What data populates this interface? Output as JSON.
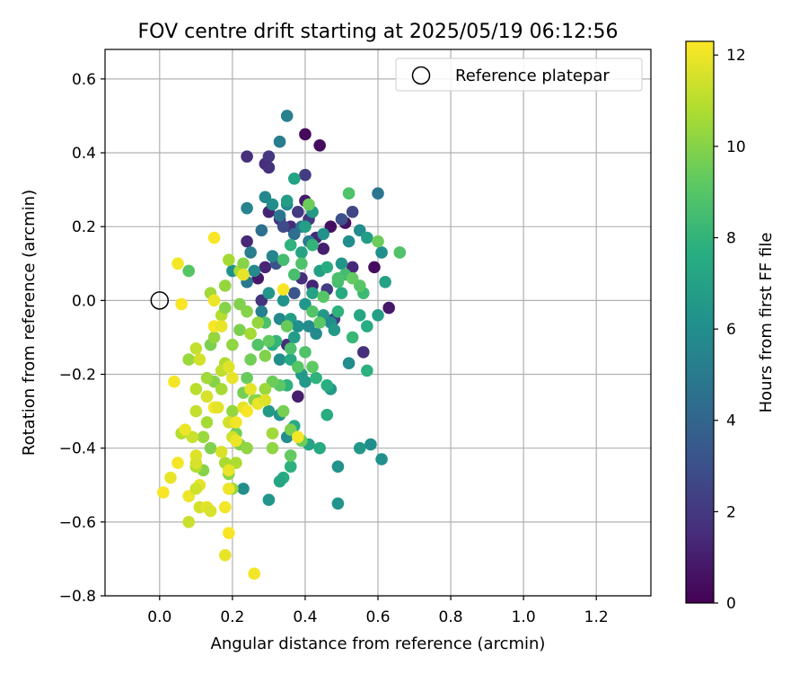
{
  "chart_data": {
    "type": "scatter",
    "title": "FOV centre drift starting at 2025/05/19 06:12:56",
    "xlabel": "Angular distance from reference (arcmin)",
    "ylabel": "Rotation from reference (arcmin)",
    "xlim": [
      -0.15,
      1.35
    ],
    "ylim": [
      -0.8,
      0.68
    ],
    "xticks": [
      0.0,
      0.2,
      0.4,
      0.6,
      0.8,
      1.0,
      1.2
    ],
    "xtick_labels": [
      "0.0",
      "0.2",
      "0.4",
      "0.6",
      "0.8",
      "1.0",
      "1.2"
    ],
    "yticks": [
      0.6,
      0.4,
      0.2,
      0.0,
      -0.2,
      -0.4,
      -0.6,
      -0.8
    ],
    "ytick_labels": [
      "0.6",
      "0.4",
      "0.2",
      "0.0",
      "−0.2",
      "−0.4",
      "−0.6",
      "−0.8"
    ],
    "grid": true,
    "legend": {
      "position": "top-right",
      "entries": [
        "Reference platepar"
      ]
    },
    "reference_point": {
      "name": "Reference platepar",
      "x": 0.0,
      "y": 0.0
    },
    "colorbar": {
      "label": "Hours from first FF file",
      "colormap": "viridis",
      "range": [
        0,
        12.3
      ],
      "ticks": [
        0,
        2,
        4,
        6,
        8,
        10,
        12
      ],
      "tick_labels": [
        "0",
        "2",
        "4",
        "6",
        "8",
        "10",
        "12"
      ]
    },
    "colors": [
      "#440154",
      "#472d7b",
      "#3b528b",
      "#2c728e",
      "#21918c",
      "#28ae80",
      "#5ec962",
      "#addc30",
      "#fde725"
    ],
    "points": [
      {
        "x": 0.4,
        "y": 0.45,
        "h": 0.3
      },
      {
        "x": 0.44,
        "y": 0.42,
        "h": 0.4
      },
      {
        "x": 0.47,
        "y": 0.2,
        "h": 0.5
      },
      {
        "x": 0.51,
        "y": 0.21,
        "h": 0.6
      },
      {
        "x": 0.59,
        "y": 0.09,
        "h": 0.4
      },
      {
        "x": 0.63,
        "y": -0.02,
        "h": 0.8
      },
      {
        "x": 0.4,
        "y": 0.27,
        "h": 0.9
      },
      {
        "x": 0.27,
        "y": 0.06,
        "h": 0.8
      },
      {
        "x": 0.45,
        "y": 0.14,
        "h": 1.0
      },
      {
        "x": 0.24,
        "y": 0.39,
        "h": 1.6
      },
      {
        "x": 0.29,
        "y": 0.37,
        "h": 1.5
      },
      {
        "x": 0.3,
        "y": 0.39,
        "h": 1.9
      },
      {
        "x": 0.3,
        "y": 0.36,
        "h": 1.7
      },
      {
        "x": 0.24,
        "y": 0.16,
        "h": 1.4
      },
      {
        "x": 0.29,
        "y": 0.09,
        "h": 1.3
      },
      {
        "x": 0.3,
        "y": 0.24,
        "h": 1.2
      },
      {
        "x": 0.33,
        "y": 0.22,
        "h": 1.8
      },
      {
        "x": 0.36,
        "y": 0.2,
        "h": 1.5
      },
      {
        "x": 0.38,
        "y": 0.24,
        "h": 2.1
      },
      {
        "x": 0.41,
        "y": 0.22,
        "h": 2.0
      },
      {
        "x": 0.43,
        "y": 0.17,
        "h": 1.3
      },
      {
        "x": 0.39,
        "y": 0.06,
        "h": 1.6
      },
      {
        "x": 0.42,
        "y": 0.04,
        "h": 1.2
      },
      {
        "x": 0.46,
        "y": 0.03,
        "h": 2.2
      },
      {
        "x": 0.53,
        "y": 0.09,
        "h": 1.4
      },
      {
        "x": 0.56,
        "y": -0.14,
        "h": 1.6
      },
      {
        "x": 0.28,
        "y": 0.0,
        "h": 1.8
      },
      {
        "x": 0.35,
        "y": -0.12,
        "h": 1.5
      },
      {
        "x": 0.38,
        "y": -0.26,
        "h": 1.0
      },
      {
        "x": 0.48,
        "y": -0.05,
        "h": 2.3
      },
      {
        "x": 0.4,
        "y": 0.34,
        "h": 2.2
      },
      {
        "x": 0.34,
        "y": 0.2,
        "h": 2.8
      },
      {
        "x": 0.53,
        "y": 0.24,
        "h": 2.6
      },
      {
        "x": 0.5,
        "y": 0.22,
        "h": 3.0
      },
      {
        "x": 0.32,
        "y": 0.1,
        "h": 3.1
      },
      {
        "x": 0.37,
        "y": 0.02,
        "h": 3.2
      },
      {
        "x": 0.33,
        "y": 0.43,
        "h": 5.2
      },
      {
        "x": 0.35,
        "y": 0.5,
        "h": 5.3
      },
      {
        "x": 0.24,
        "y": 0.25,
        "h": 5.5
      },
      {
        "x": 0.28,
        "y": 0.19,
        "h": 4.5
      },
      {
        "x": 0.29,
        "y": 0.28,
        "h": 5.6
      },
      {
        "x": 0.33,
        "y": 0.23,
        "h": 4.7
      },
      {
        "x": 0.35,
        "y": 0.26,
        "h": 5.8
      },
      {
        "x": 0.31,
        "y": 0.26,
        "h": 6.0
      },
      {
        "x": 0.39,
        "y": 0.2,
        "h": 4.9
      },
      {
        "x": 0.37,
        "y": 0.18,
        "h": 4.4
      },
      {
        "x": 0.41,
        "y": 0.16,
        "h": 5.1
      },
      {
        "x": 0.45,
        "y": 0.18,
        "h": 6.2
      },
      {
        "x": 0.5,
        "y": 0.1,
        "h": 6.4
      },
      {
        "x": 0.52,
        "y": 0.16,
        "h": 6.0
      },
      {
        "x": 0.55,
        "y": 0.19,
        "h": 5.9
      },
      {
        "x": 0.57,
        "y": 0.17,
        "h": 6.8
      },
      {
        "x": 0.6,
        "y": 0.29,
        "h": 4.8
      },
      {
        "x": 0.61,
        "y": 0.13,
        "h": 6.1
      },
      {
        "x": 0.62,
        "y": 0.05,
        "h": 7.0
      },
      {
        "x": 0.6,
        "y": -0.04,
        "h": 6.9
      },
      {
        "x": 0.55,
        "y": -0.04,
        "h": 7.3
      },
      {
        "x": 0.57,
        "y": -0.07,
        "h": 7.6
      },
      {
        "x": 0.52,
        "y": -0.17,
        "h": 5.9
      },
      {
        "x": 0.49,
        "y": -0.45,
        "h": 6.2
      },
      {
        "x": 0.49,
        "y": -0.55,
        "h": 6.3
      },
      {
        "x": 0.58,
        "y": -0.39,
        "h": 6.0
      },
      {
        "x": 0.55,
        "y": -0.4,
        "h": 6.5
      },
      {
        "x": 0.61,
        "y": -0.43,
        "h": 6.1
      },
      {
        "x": 0.41,
        "y": -0.39,
        "h": 7.1
      },
      {
        "x": 0.44,
        "y": -0.4,
        "h": 7.4
      },
      {
        "x": 0.3,
        "y": -0.54,
        "h": 6.4
      },
      {
        "x": 0.34,
        "y": -0.48,
        "h": 7.6
      },
      {
        "x": 0.33,
        "y": -0.49,
        "h": 7.2
      },
      {
        "x": 0.23,
        "y": -0.51,
        "h": 6.0
      },
      {
        "x": 0.36,
        "y": -0.45,
        "h": 7.8
      },
      {
        "x": 0.33,
        "y": -0.31,
        "h": 6.3
      },
      {
        "x": 0.35,
        "y": -0.37,
        "h": 5.9
      },
      {
        "x": 0.37,
        "y": -0.34,
        "h": 7.5
      },
      {
        "x": 0.3,
        "y": -0.3,
        "h": 6.6
      },
      {
        "x": 0.39,
        "y": -0.2,
        "h": 6.5
      },
      {
        "x": 0.4,
        "y": -0.22,
        "h": 6.6
      },
      {
        "x": 0.43,
        "y": -0.21,
        "h": 7.9
      },
      {
        "x": 0.47,
        "y": -0.24,
        "h": 6.7
      },
      {
        "x": 0.46,
        "y": -0.23,
        "h": 7.7
      },
      {
        "x": 0.46,
        "y": -0.31,
        "h": 7.6
      },
      {
        "x": 0.35,
        "y": -0.23,
        "h": 7.9
      },
      {
        "x": 0.33,
        "y": -0.16,
        "h": 6.0
      },
      {
        "x": 0.31,
        "y": -0.12,
        "h": 7.7
      },
      {
        "x": 0.36,
        "y": -0.16,
        "h": 7.4
      },
      {
        "x": 0.33,
        "y": -0.05,
        "h": 5.7
      },
      {
        "x": 0.36,
        "y": -0.05,
        "h": 6.8
      },
      {
        "x": 0.38,
        "y": -0.07,
        "h": 6.1
      },
      {
        "x": 0.41,
        "y": -0.07,
        "h": 5.9
      },
      {
        "x": 0.4,
        "y": -0.01,
        "h": 6.4
      },
      {
        "x": 0.42,
        "y": 0.02,
        "h": 7.0
      },
      {
        "x": 0.45,
        "y": -0.04,
        "h": 6.5
      },
      {
        "x": 0.43,
        "y": -0.09,
        "h": 5.8
      },
      {
        "x": 0.37,
        "y": -0.1,
        "h": 6.8
      },
      {
        "x": 0.34,
        "y": 0.0,
        "h": 6.2
      },
      {
        "x": 0.32,
        "y": -0.11,
        "h": 8.0
      },
      {
        "x": 0.47,
        "y": -0.06,
        "h": 6.0
      },
      {
        "x": 0.48,
        "y": -0.08,
        "h": 6.6
      },
      {
        "x": 0.44,
        "y": 0.08,
        "h": 6.9
      },
      {
        "x": 0.46,
        "y": 0.09,
        "h": 7.6
      },
      {
        "x": 0.5,
        "y": 0.02,
        "h": 7.5
      },
      {
        "x": 0.53,
        "y": -0.1,
        "h": 8.2
      },
      {
        "x": 0.49,
        "y": -0.03,
        "h": 7.9
      },
      {
        "x": 0.51,
        "y": 0.07,
        "h": 8.5
      },
      {
        "x": 0.39,
        "y": 0.13,
        "h": 7.1
      },
      {
        "x": 0.36,
        "y": 0.15,
        "h": 7.9
      },
      {
        "x": 0.37,
        "y": 0.07,
        "h": 8.6
      },
      {
        "x": 0.39,
        "y": 0.1,
        "h": 8.8
      },
      {
        "x": 0.42,
        "y": 0.15,
        "h": 8.0
      },
      {
        "x": 0.35,
        "y": 0.27,
        "h": 6.8
      },
      {
        "x": 0.37,
        "y": 0.33,
        "h": 7.1
      },
      {
        "x": 0.4,
        "y": 0.2,
        "h": 6.9
      },
      {
        "x": 0.42,
        "y": 0.24,
        "h": 6.6
      },
      {
        "x": 0.25,
        "y": 0.13,
        "h": 5.2
      },
      {
        "x": 0.31,
        "y": 0.12,
        "h": 5.5
      },
      {
        "x": 0.26,
        "y": 0.08,
        "h": 5.8
      },
      {
        "x": 0.2,
        "y": 0.08,
        "h": 6.1
      },
      {
        "x": 0.24,
        "y": 0.05,
        "h": 4.9
      },
      {
        "x": 0.28,
        "y": -0.03,
        "h": 5.3
      },
      {
        "x": 0.3,
        "y": 0.02,
        "h": 6.4
      },
      {
        "x": 0.34,
        "y": 0.11,
        "h": 8.5
      },
      {
        "x": 0.56,
        "y": 0.02,
        "h": 8.3
      },
      {
        "x": 0.57,
        "y": -0.19,
        "h": 7.8
      },
      {
        "x": 0.52,
        "y": 0.29,
        "h": 8.8
      },
      {
        "x": 0.41,
        "y": 0.26,
        "h": 9.5
      },
      {
        "x": 0.49,
        "y": 0.05,
        "h": 8.5
      },
      {
        "x": 0.66,
        "y": 0.13,
        "h": 8.8
      },
      {
        "x": 0.6,
        "y": 0.16,
        "h": 9.5
      },
      {
        "x": 0.55,
        "y": 0.04,
        "h": 9.0
      },
      {
        "x": 0.53,
        "y": 0.06,
        "h": 9.3
      },
      {
        "x": 0.49,
        "y": 0.06,
        "h": 8.7
      },
      {
        "x": 0.45,
        "y": 0.01,
        "h": 9.0
      },
      {
        "x": 0.42,
        "y": -0.03,
        "h": 8.9
      },
      {
        "x": 0.44,
        "y": -0.06,
        "h": 9.1
      },
      {
        "x": 0.4,
        "y": -0.14,
        "h": 8.8
      },
      {
        "x": 0.42,
        "y": -0.18,
        "h": 9.2
      },
      {
        "x": 0.38,
        "y": -0.18,
        "h": 9.0
      },
      {
        "x": 0.36,
        "y": -0.13,
        "h": 8.7
      },
      {
        "x": 0.35,
        "y": -0.07,
        "h": 9.4
      },
      {
        "x": 0.29,
        "y": -0.06,
        "h": 8.7
      },
      {
        "x": 0.3,
        "y": -0.11,
        "h": 9.3
      },
      {
        "x": 0.27,
        "y": -0.12,
        "h": 8.9
      },
      {
        "x": 0.25,
        "y": -0.16,
        "h": 9.6
      },
      {
        "x": 0.22,
        "y": -0.08,
        "h": 9.8
      },
      {
        "x": 0.24,
        "y": -0.03,
        "h": 10.0
      },
      {
        "x": 0.29,
        "y": -0.15,
        "h": 9.9
      },
      {
        "x": 0.33,
        "y": -0.23,
        "h": 9.1
      },
      {
        "x": 0.31,
        "y": -0.22,
        "h": 9.5
      },
      {
        "x": 0.29,
        "y": -0.24,
        "h": 10.4
      },
      {
        "x": 0.27,
        "y": -0.27,
        "h": 10.2
      },
      {
        "x": 0.34,
        "y": -0.3,
        "h": 9.7
      },
      {
        "x": 0.36,
        "y": -0.35,
        "h": 9.8
      },
      {
        "x": 0.36,
        "y": -0.42,
        "h": 9.3
      },
      {
        "x": 0.39,
        "y": -0.38,
        "h": 9.5
      },
      {
        "x": 0.31,
        "y": -0.4,
        "h": 10.2
      },
      {
        "x": 0.31,
        "y": -0.36,
        "h": 10.5
      },
      {
        "x": 0.26,
        "y": -0.27,
        "h": 10.1
      },
      {
        "x": 0.24,
        "y": -0.21,
        "h": 9.4
      },
      {
        "x": 0.23,
        "y": -0.25,
        "h": 9.7
      },
      {
        "x": 0.2,
        "y": -0.3,
        "h": 10.3
      },
      {
        "x": 0.21,
        "y": -0.36,
        "h": 9.6
      },
      {
        "x": 0.22,
        "y": -0.39,
        "h": 9.9
      },
      {
        "x": 0.24,
        "y": -0.4,
        "h": 10.2
      },
      {
        "x": 0.21,
        "y": -0.44,
        "h": 10.8
      },
      {
        "x": 0.2,
        "y": -0.51,
        "h": 10.3
      },
      {
        "x": 0.19,
        "y": -0.47,
        "h": 10.1
      },
      {
        "x": 0.18,
        "y": -0.44,
        "h": 10.7
      },
      {
        "x": 0.14,
        "y": -0.4,
        "h": 9.9
      },
      {
        "x": 0.12,
        "y": -0.37,
        "h": 10.4
      },
      {
        "x": 0.13,
        "y": -0.33,
        "h": 10.6
      },
      {
        "x": 0.12,
        "y": -0.46,
        "h": 10.0
      },
      {
        "x": 0.1,
        "y": -0.45,
        "h": 10.9
      },
      {
        "x": 0.13,
        "y": -0.26,
        "h": 9.7
      },
      {
        "x": 0.15,
        "y": -0.22,
        "h": 10.0
      },
      {
        "x": 0.13,
        "y": -0.21,
        "h": 10.5
      },
      {
        "x": 0.17,
        "y": -0.24,
        "h": 10.6
      },
      {
        "x": 0.18,
        "y": -0.17,
        "h": 10.8
      },
      {
        "x": 0.2,
        "y": -0.12,
        "h": 10.2
      },
      {
        "x": 0.14,
        "y": -0.12,
        "h": 9.8
      },
      {
        "x": 0.15,
        "y": -0.1,
        "h": 10.3
      },
      {
        "x": 0.17,
        "y": -0.04,
        "h": 10.9
      },
      {
        "x": 0.18,
        "y": 0.04,
        "h": 10.3
      },
      {
        "x": 0.22,
        "y": 0.08,
        "h": 10.7
      },
      {
        "x": 0.23,
        "y": 0.1,
        "h": 10.0
      },
      {
        "x": 0.19,
        "y": 0.11,
        "h": 10.6
      },
      {
        "x": 0.22,
        "y": -0.01,
        "h": 9.9
      },
      {
        "x": 0.25,
        "y": -0.09,
        "h": 10.6
      },
      {
        "x": 0.27,
        "y": -0.06,
        "h": 10.3
      },
      {
        "x": 0.08,
        "y": 0.08,
        "h": 9.0
      },
      {
        "x": 0.14,
        "y": 0.02,
        "h": 10.5
      },
      {
        "x": 0.18,
        "y": -0.02,
        "h": 10.0
      },
      {
        "x": 0.08,
        "y": -0.16,
        "h": 10.4
      },
      {
        "x": 0.06,
        "y": -0.36,
        "h": 10.9
      },
      {
        "x": 0.1,
        "y": -0.3,
        "h": 11.2
      },
      {
        "x": 0.1,
        "y": -0.24,
        "h": 11.0
      },
      {
        "x": 0.09,
        "y": -0.37,
        "h": 11.3
      },
      {
        "x": 0.11,
        "y": -0.16,
        "h": 11.5
      },
      {
        "x": 0.1,
        "y": -0.13,
        "h": 11.2
      },
      {
        "x": 0.17,
        "y": -0.19,
        "h": 11.1
      },
      {
        "x": 0.19,
        "y": -0.18,
        "h": 11.7
      },
      {
        "x": 0.2,
        "y": -0.21,
        "h": 11.9
      },
      {
        "x": 0.19,
        "y": -0.33,
        "h": 11.5
      },
      {
        "x": 0.23,
        "y": -0.29,
        "h": 11.8
      },
      {
        "x": 0.2,
        "y": -0.37,
        "h": 11.4
      },
      {
        "x": 0.17,
        "y": -0.41,
        "h": 11.6
      },
      {
        "x": 0.19,
        "y": -0.46,
        "h": 11.9
      },
      {
        "x": 0.1,
        "y": -0.42,
        "h": 11.7
      },
      {
        "x": 0.11,
        "y": -0.5,
        "h": 11.8
      },
      {
        "x": 0.08,
        "y": -0.53,
        "h": 12.0
      },
      {
        "x": 0.1,
        "y": -0.51,
        "h": 11.4
      },
      {
        "x": 0.05,
        "y": -0.44,
        "h": 12.1
      },
      {
        "x": 0.03,
        "y": -0.48,
        "h": 11.9
      },
      {
        "x": 0.01,
        "y": -0.52,
        "h": 12.2
      },
      {
        "x": 0.07,
        "y": -0.35,
        "h": 12.0
      },
      {
        "x": 0.04,
        "y": -0.22,
        "h": 12.1
      },
      {
        "x": 0.08,
        "y": -0.6,
        "h": 11.3
      },
      {
        "x": 0.11,
        "y": -0.56,
        "h": 11.5
      },
      {
        "x": 0.13,
        "y": -0.56,
        "h": 11.8
      },
      {
        "x": 0.14,
        "y": -0.57,
        "h": 11.6
      },
      {
        "x": 0.18,
        "y": -0.56,
        "h": 12.1
      },
      {
        "x": 0.19,
        "y": -0.51,
        "h": 12.0
      },
      {
        "x": 0.19,
        "y": -0.63,
        "h": 12.2
      },
      {
        "x": 0.18,
        "y": -0.69,
        "h": 11.9
      },
      {
        "x": 0.26,
        "y": -0.74,
        "h": 12.1
      },
      {
        "x": 0.05,
        "y": 0.1,
        "h": 12.1
      },
      {
        "x": 0.06,
        "y": -0.01,
        "h": 12.2
      },
      {
        "x": 0.15,
        "y": 0.0,
        "h": 12.0
      },
      {
        "x": 0.15,
        "y": 0.17,
        "h": 12.2
      },
      {
        "x": 0.15,
        "y": -0.07,
        "h": 12.2
      },
      {
        "x": 0.17,
        "y": -0.07,
        "h": 11.9
      },
      {
        "x": 0.15,
        "y": -0.29,
        "h": 12.1
      },
      {
        "x": 0.13,
        "y": -0.26,
        "h": 11.6
      },
      {
        "x": 0.16,
        "y": -0.29,
        "h": 11.8
      },
      {
        "x": 0.21,
        "y": -0.33,
        "h": 12.1
      },
      {
        "x": 0.21,
        "y": -0.38,
        "h": 12.0
      },
      {
        "x": 0.24,
        "y": -0.3,
        "h": 12.2
      },
      {
        "x": 0.25,
        "y": -0.24,
        "h": 11.8
      },
      {
        "x": 0.27,
        "y": -0.28,
        "h": 11.9
      },
      {
        "x": 0.29,
        "y": -0.27,
        "h": 11.7
      },
      {
        "x": 0.23,
        "y": 0.07,
        "h": 11.9
      },
      {
        "x": 0.34,
        "y": 0.03,
        "h": 12.2
      },
      {
        "x": 0.38,
        "y": -0.37,
        "h": 12.1
      },
      {
        "x": 0.1,
        "y": -0.44,
        "h": 11.6
      }
    ]
  }
}
